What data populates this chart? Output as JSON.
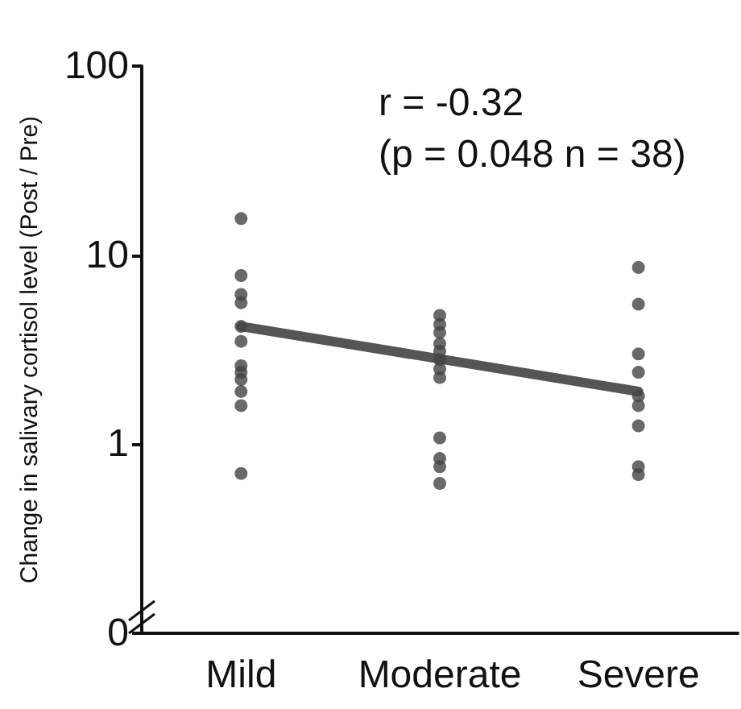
{
  "chart_data": {
    "type": "scatter",
    "ylabel": "Change in salivary cortisol level (Post / Pre)",
    "categories": [
      "Mild",
      "Moderate",
      "Severe"
    ],
    "series": [
      {
        "marker": "circle",
        "color": "#444444",
        "x": [
          "Mild",
          "Mild",
          "Mild",
          "Mild",
          "Mild",
          "Mild",
          "Mild",
          "Mild",
          "Mild",
          "Mild",
          "Mild",
          "Mild",
          "Moderate",
          "Moderate",
          "Moderate",
          "Moderate",
          "Moderate",
          "Moderate",
          "Moderate",
          "Moderate",
          "Moderate",
          "Moderate",
          "Moderate",
          "Moderate",
          "Severe",
          "Severe",
          "Severe",
          "Severe",
          "Severe",
          "Severe",
          "Severe",
          "Severe",
          "Severe"
        ],
        "values": [
          15.6,
          7.8,
          6.2,
          5.6,
          4.2,
          3.5,
          2.6,
          2.4,
          2.2,
          1.9,
          1.6,
          0.7,
          4.8,
          4.3,
          3.9,
          3.4,
          3.1,
          2.8,
          2.5,
          2.25,
          1.08,
          0.84,
          0.76,
          0.62,
          8.6,
          5.5,
          3.0,
          2.4,
          1.8,
          1.6,
          1.25,
          0.76,
          0.69
        ]
      },
      {
        "type": "line",
        "marker": "none",
        "color": "#555555",
        "x": [
          "Mild",
          "Severe"
        ],
        "values": [
          4.2,
          1.9
        ]
      }
    ],
    "log": "y",
    "ylim": [
      0.1,
      100
    ],
    "yticks": [
      {
        "value": 0.1,
        "label": "0"
      },
      1,
      10,
      100
    ],
    "grid": false,
    "line_style": "solid",
    "annotations": [
      "r = -0.32",
      "(p = 0.048 n = 38)"
    ]
  }
}
